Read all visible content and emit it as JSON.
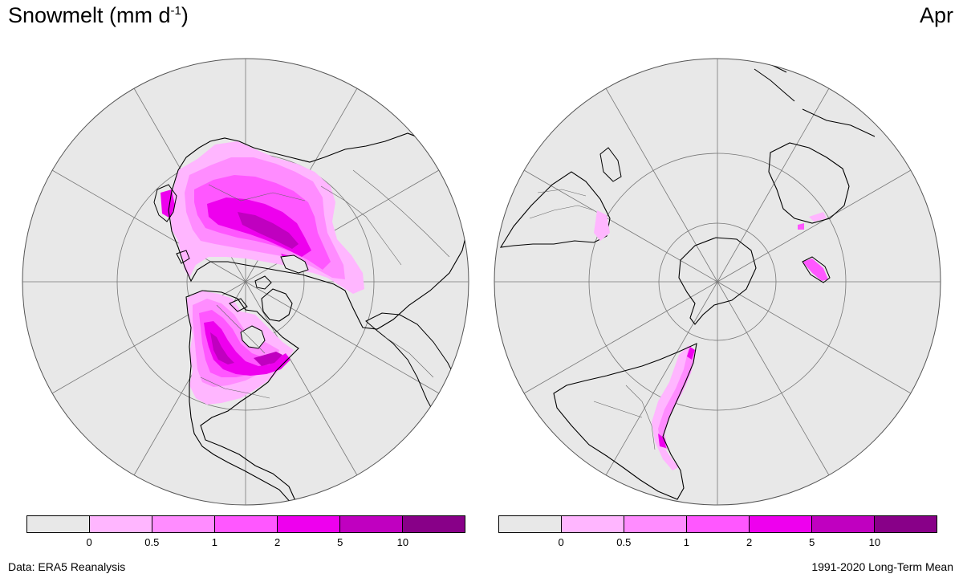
{
  "header": {
    "title_main": "Snowmelt (mm d",
    "title_sup": "-1",
    "title_close": ")",
    "month": "Apr"
  },
  "footer": {
    "source": "Data: ERA5 Reanalysis",
    "period": "1991-2020 Long-Term Mean"
  },
  "colorbar": {
    "colors": [
      "#e8e8e8",
      "#ffb6ff",
      "#ff8cff",
      "#ff57ff",
      "#ee00ee",
      "#c000c0",
      "#880088"
    ],
    "tick_labels": [
      "0",
      "0.5",
      "1",
      "2",
      "5",
      "10"
    ]
  },
  "maps": [
    {
      "name": "northern-hemisphere",
      "projection": "polar stereographic (north pole)"
    },
    {
      "name": "southern-hemisphere",
      "projection": "polar stereographic (south pole)"
    }
  ]
}
